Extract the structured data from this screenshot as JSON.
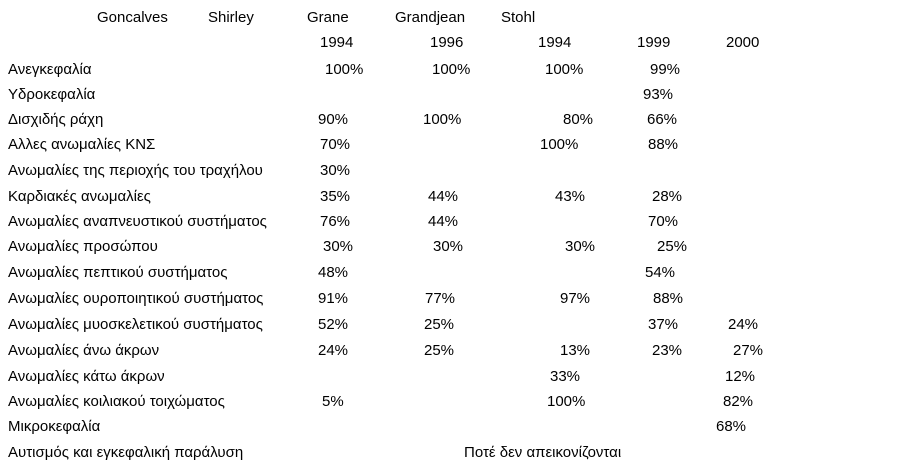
{
  "header": {
    "authors": [
      "Goncalves",
      "Shirley",
      "Grane",
      "Grandjean",
      "Stohl"
    ],
    "years": [
      "1994",
      "1996",
      "1994",
      "1999",
      "2000"
    ]
  },
  "rows": [
    {
      "label": "Ανεγκεφαλία",
      "values": [
        "100%",
        "100%",
        "100%",
        "99%",
        ""
      ]
    },
    {
      "label": "Υδροκεφαλία",
      "values": [
        "",
        "",
        "",
        "93%",
        ""
      ]
    },
    {
      "label": "Δισχιδής ράχη",
      "values": [
        "90%",
        "100%",
        "80%",
        "66%",
        ""
      ]
    },
    {
      "label": "Αλλες ανωμαλίες ΚΝΣ",
      "values": [
        "70%",
        "",
        "100%",
        "88%",
        ""
      ]
    },
    {
      "label": "Ανωμαλίες της περιοχής του τραχήλου",
      "values": [
        "30%",
        "",
        "",
        "",
        ""
      ]
    },
    {
      "label": "Καρδιακές ανωμαλίες",
      "values": [
        "35%",
        "44%",
        "43%",
        "28%",
        ""
      ]
    },
    {
      "label": "Ανωμαλίες αναπνευστικού συστήματος",
      "values": [
        "76%",
        "44%",
        "",
        "70%",
        ""
      ]
    },
    {
      "label": "Ανωμαλίες προσώπου",
      "values": [
        "30%",
        "30%",
        "30%",
        "25%",
        ""
      ]
    },
    {
      "label": "Ανωμαλίες πεπτικού συστήματος",
      "values": [
        "48%",
        "",
        "",
        "54%",
        ""
      ]
    },
    {
      "label": "Ανωμαλίες ουροποιητικού συστήματος",
      "values": [
        "91%",
        "77%",
        "97%",
        "88%",
        ""
      ]
    },
    {
      "label": "Ανωμαλίες μυοσκελετικού συστήματος",
      "values": [
        "52%",
        "25%",
        "",
        "37%",
        "24%"
      ]
    },
    {
      "label": "Ανωμαλίες άνω άκρων",
      "values": [
        "24%",
        "25%",
        "13%",
        "23%",
        "27%"
      ]
    },
    {
      "label": "Ανωμαλίες κάτω άκρων",
      "values": [
        "",
        "",
        "33%",
        "",
        "12%"
      ]
    },
    {
      "label": "Ανωμαλίες κοιλιακού τοιχώματος",
      "values": [
        "5%",
        "",
        "100%",
        "",
        "82%"
      ]
    },
    {
      "label": "Μικροκεφαλία",
      "values": [
        "",
        "",
        "",
        "",
        "68%"
      ]
    },
    {
      "label": "Αυτισμός και εγκεφαλική παράλυση",
      "values": [
        "",
        "",
        "",
        "",
        ""
      ],
      "note": "Ποτέ δεν απεικονίζονται"
    }
  ]
}
